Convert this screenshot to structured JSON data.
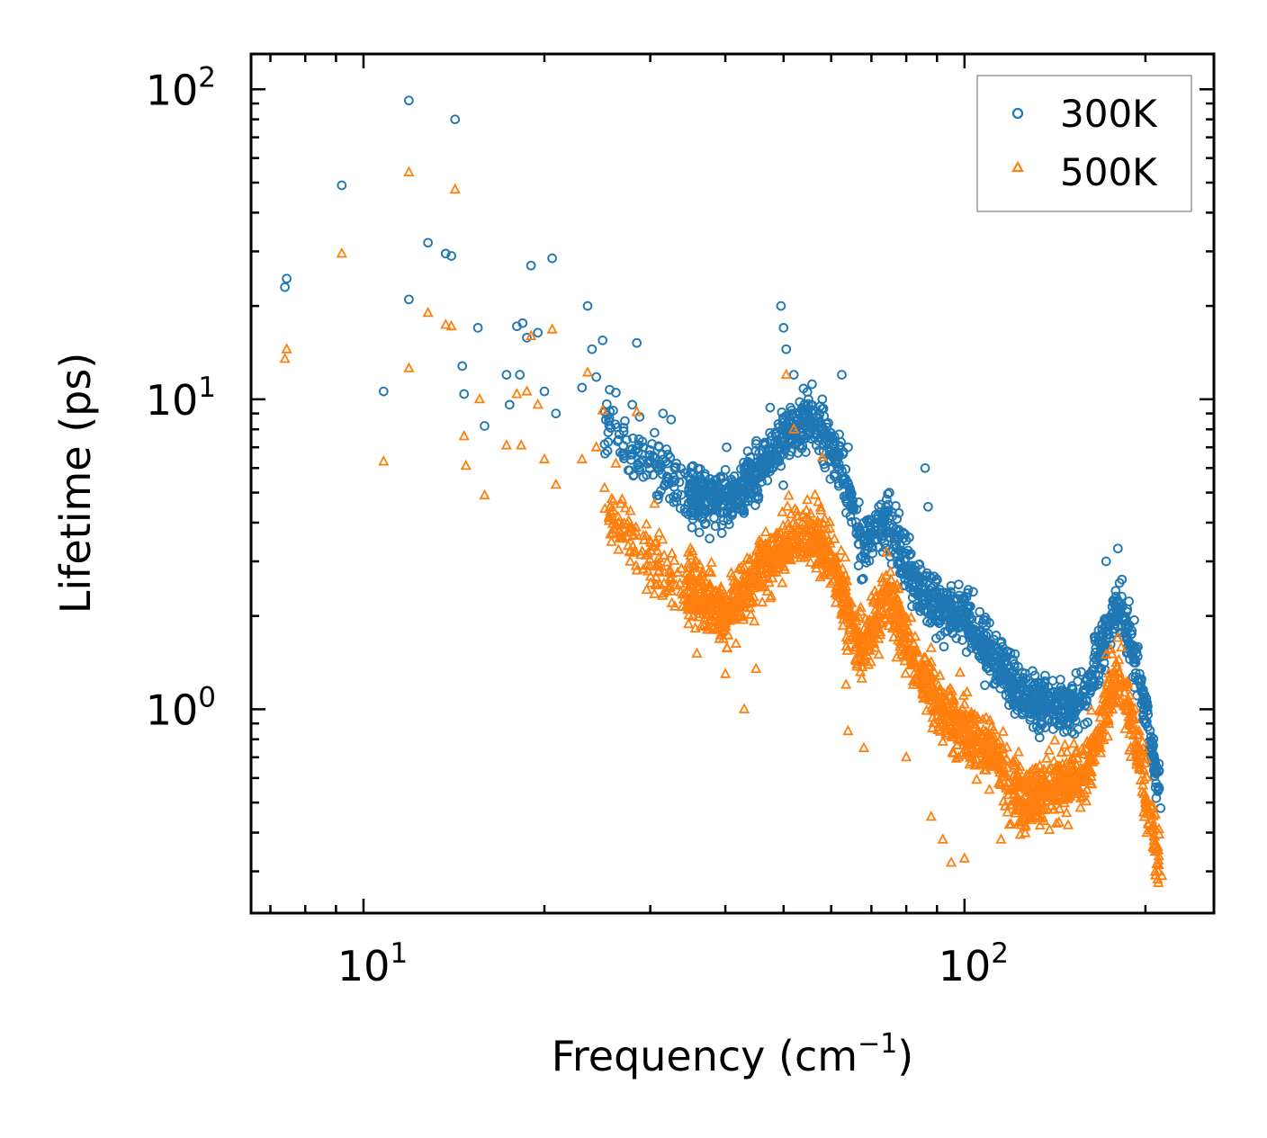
{
  "chart_data": {
    "type": "scatter",
    "title": "",
    "xlabel": "Frequency (cm",
    "xlabel_sup": "−1",
    "xlabel_close": ")",
    "ylabel": "Lifetime (ps)",
    "xscale": "log",
    "yscale": "log",
    "xlim": [
      6.5,
      260
    ],
    "ylim": [
      0.22,
      130
    ],
    "x_ticks": [
      {
        "base": "10",
        "exp": "1",
        "value": 10
      },
      {
        "base": "10",
        "exp": "2",
        "value": 100
      }
    ],
    "y_ticks": [
      {
        "base": "10",
        "exp": "0",
        "value": 1
      },
      {
        "base": "10",
        "exp": "1",
        "value": 10
      },
      {
        "base": "10",
        "exp": "2",
        "value": 100
      }
    ],
    "legend_position": "top-right",
    "series": [
      {
        "name": "300K",
        "marker": "circle",
        "color": "#1f77b4",
        "sample_points": [
          [
            7.4,
            23.0
          ],
          [
            7.45,
            24.5
          ],
          [
            9.2,
            49.0
          ],
          [
            10.8,
            10.6
          ],
          [
            11.9,
            92.0
          ],
          [
            11.9,
            21.0
          ],
          [
            12.8,
            32.0
          ],
          [
            13.7,
            29.5
          ],
          [
            14.0,
            29.0
          ],
          [
            14.2,
            80.0
          ],
          [
            14.6,
            12.8
          ],
          [
            14.7,
            10.4
          ],
          [
            15.5,
            17.0
          ],
          [
            15.9,
            8.2
          ],
          [
            17.3,
            12.0
          ],
          [
            17.5,
            9.6
          ],
          [
            18.0,
            17.2
          ],
          [
            18.2,
            12.0
          ],
          [
            18.4,
            17.6
          ],
          [
            18.7,
            15.8
          ],
          [
            19.0,
            27.0
          ],
          [
            19.5,
            16.4
          ],
          [
            20.0,
            10.6
          ],
          [
            20.6,
            28.5
          ],
          [
            20.9,
            9.0
          ],
          [
            23.1,
            10.9
          ],
          [
            23.6,
            20.0
          ],
          [
            24.0,
            14.5
          ],
          [
            24.4,
            11.8
          ],
          [
            25.0,
            15.5
          ],
          [
            25.6,
            8.5
          ],
          [
            26.3,
            10.5
          ],
          [
            28.0,
            9.6
          ],
          [
            28.5,
            15.2
          ],
          [
            29.2,
            7.0
          ],
          [
            30.5,
            7.8
          ],
          [
            31.5,
            9.0
          ],
          [
            32.5,
            8.6
          ],
          [
            35.0,
            5.8
          ],
          [
            38.0,
            5.3
          ],
          [
            40.2,
            7.0
          ],
          [
            44.0,
            6.5
          ],
          [
            47.5,
            9.4
          ],
          [
            49.5,
            20.0
          ],
          [
            50.0,
            17.0
          ],
          [
            50.5,
            14.5
          ],
          [
            52.0,
            12.0
          ],
          [
            55.0,
            10.0
          ],
          [
            58.0,
            10.0
          ],
          [
            62.5,
            12.0
          ],
          [
            64.0,
            7.0
          ],
          [
            68.0,
            4.0
          ],
          [
            72.0,
            4.5
          ],
          [
            75.0,
            5.0
          ],
          [
            80.0,
            3.5
          ],
          [
            86.0,
            6.0
          ],
          [
            87.0,
            4.5
          ],
          [
            95.0,
            2.5
          ],
          [
            110.0,
            1.9
          ],
          [
            120.0,
            1.2
          ],
          [
            135.0,
            1.0
          ],
          [
            150.0,
            1.05
          ],
          [
            172.0,
            3.0
          ],
          [
            180.0,
            3.3
          ],
          [
            200.0,
            0.9
          ],
          [
            210.0,
            0.55
          ],
          [
            212.0,
            0.48
          ]
        ]
      },
      {
        "name": "500K",
        "marker": "triangle",
        "color": "#ff7f0e",
        "sample_points": [
          [
            7.4,
            13.5
          ],
          [
            7.45,
            14.5
          ],
          [
            9.2,
            29.5
          ],
          [
            10.8,
            6.3
          ],
          [
            11.9,
            54.0
          ],
          [
            11.9,
            12.6
          ],
          [
            12.8,
            19.0
          ],
          [
            13.7,
            17.4
          ],
          [
            14.0,
            17.2
          ],
          [
            14.2,
            47.5
          ],
          [
            14.7,
            7.6
          ],
          [
            14.8,
            6.1
          ],
          [
            15.6,
            10.0
          ],
          [
            15.9,
            4.9
          ],
          [
            17.3,
            7.1
          ],
          [
            18.0,
            10.4
          ],
          [
            18.3,
            7.1
          ],
          [
            18.7,
            10.6
          ],
          [
            19.0,
            16.0
          ],
          [
            19.5,
            9.6
          ],
          [
            20.0,
            6.4
          ],
          [
            20.6,
            16.8
          ],
          [
            20.9,
            5.3
          ],
          [
            23.1,
            6.4
          ],
          [
            23.6,
            12.2
          ],
          [
            24.4,
            7.0
          ],
          [
            25.0,
            9.2
          ],
          [
            26.3,
            6.2
          ],
          [
            28.5,
            9.1
          ],
          [
            30.5,
            4.6
          ],
          [
            32.5,
            2.4
          ],
          [
            35.0,
            3.3
          ],
          [
            38.0,
            2.1
          ],
          [
            40.0,
            1.3
          ],
          [
            43.0,
            1.0
          ],
          [
            45.0,
            1.35
          ],
          [
            50.5,
            12.0
          ],
          [
            52.0,
            8.0
          ],
          [
            58.0,
            6.5
          ],
          [
            63.5,
            1.2
          ],
          [
            64.0,
            0.85
          ],
          [
            68.0,
            0.75
          ],
          [
            72.0,
            1.5
          ],
          [
            80.0,
            0.7
          ],
          [
            88.0,
            0.45
          ],
          [
            92.0,
            0.38
          ],
          [
            95.0,
            0.32
          ],
          [
            100.0,
            0.33
          ],
          [
            110.0,
            0.55
          ],
          [
            115.0,
            0.38
          ],
          [
            130.0,
            0.52
          ],
          [
            150.0,
            0.62
          ],
          [
            172.0,
            1.5
          ],
          [
            180.0,
            1.7
          ],
          [
            200.0,
            0.5
          ],
          [
            210.0,
            0.3
          ],
          [
            213.0,
            0.29
          ]
        ]
      }
    ]
  }
}
